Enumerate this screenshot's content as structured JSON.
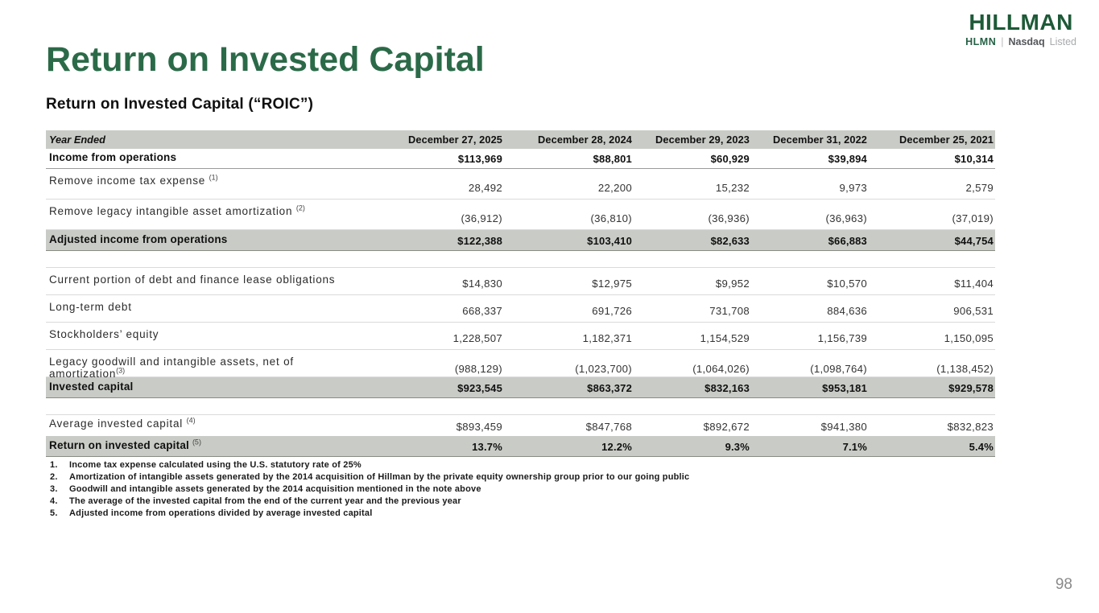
{
  "title": "Return on Invested Capital",
  "subtitle": "Return on Invested Capital (“ROIC”)",
  "logo": {
    "brand": "HILLMAN",
    "ticker": "HLMN",
    "separator": "|",
    "exchange": "Nasdaq",
    "listed": "Listed"
  },
  "colors": {
    "title_green": "#2b6a48",
    "logo_green": "#1e5a38",
    "band_gray": "#c9ccc6",
    "page_number_gray": "#8a8a8a"
  },
  "table": {
    "header": {
      "label": "Year Ended",
      "columns": [
        "December 27, 2025",
        "December 28, 2024",
        "December 29, 2023",
        "December 31, 2022",
        "December 25, 2021"
      ]
    },
    "rows": [
      {
        "variant": "first",
        "label": "Income from operations",
        "sup": "",
        "gap": false,
        "values": [
          "$113,969",
          "$88,801",
          "$60,929",
          "$39,894",
          "$10,314"
        ]
      },
      {
        "variant": "plain",
        "label": "Remove income tax expense",
        "sup": "(1)",
        "gap": true,
        "values": [
          "28,492",
          "22,200",
          "15,232",
          "9,973",
          "2,579"
        ]
      },
      {
        "variant": "plain",
        "label": "Remove legacy intangible asset amortization",
        "sup": "(2)",
        "gap": true,
        "values": [
          "(36,912)",
          "(36,810)",
          "(36,936)",
          "(36,963)",
          "(37,019)"
        ]
      },
      {
        "variant": "emphasis",
        "label": "Adjusted income from operations",
        "sup": "",
        "gap": false,
        "values": [
          "$122,388",
          "$103,410",
          "$82,633",
          "$66,883",
          "$44,754"
        ]
      },
      {
        "variant": "spacer"
      },
      {
        "variant": "plain-sm",
        "label": "Current portion of debt and finance lease obligations",
        "sup": "",
        "gap": false,
        "values": [
          "$14,830",
          "$12,975",
          "$9,952",
          "$10,570",
          "$11,404"
        ]
      },
      {
        "variant": "plain-sm",
        "label": "Long-term debt",
        "sup": "",
        "gap": false,
        "values": [
          "668,337",
          "691,726",
          "731,708",
          "884,636",
          "906,531"
        ]
      },
      {
        "variant": "plain-sm",
        "label": "Stockholders’ equity",
        "sup": "",
        "gap": false,
        "values": [
          "1,228,507",
          "1,182,371",
          "1,154,529",
          "1,156,739",
          "1,150,095"
        ]
      },
      {
        "variant": "plain-sm",
        "label": "Legacy goodwill and intangible assets, net of amortization",
        "sup": "(3)",
        "gap": false,
        "values": [
          "(988,129)",
          "(1,023,700)",
          "(1,064,026)",
          "(1,098,764)",
          "(1,138,452)"
        ]
      },
      {
        "variant": "emphasis",
        "label": "Invested capital",
        "sup": "",
        "gap": false,
        "values": [
          "$923,545",
          "$863,372",
          "$832,163",
          "$953,181",
          "$929,578"
        ]
      },
      {
        "variant": "spacer"
      },
      {
        "variant": "plain-avg",
        "label": "Average invested capital",
        "sup": "(4)",
        "gap": true,
        "values": [
          "$893,459",
          "$847,768",
          "$892,672",
          "$941,380",
          "$832,823"
        ]
      },
      {
        "variant": "emphasis",
        "label": "Return on invested capital",
        "sup": "(5)",
        "gap": true,
        "values": [
          "13.7%",
          "12.2%",
          "9.3%",
          "7.1%",
          "5.4%"
        ]
      }
    ]
  },
  "footnotes": [
    "Income tax expense calculated using the U.S. statutory rate of 25%",
    "Amortization of intangible assets generated by the 2014 acquisition of Hillman by the private equity ownership group prior to our going public",
    "Goodwill and intangible assets generated by the 2014 acquisition mentioned in the note above",
    "The average of the invested capital from the end of the current year and the previous year",
    "Adjusted income from operations divided by average invested capital"
  ],
  "page": {
    "number": "98"
  }
}
